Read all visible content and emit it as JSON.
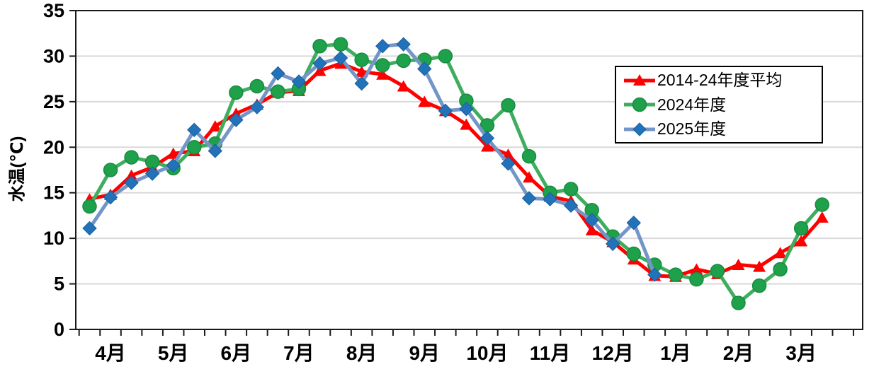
{
  "chart_data": {
    "type": "line",
    "title": "",
    "y_axis": {
      "label": "水温(℃)",
      "min": 0,
      "max": 35,
      "ticks": [
        0,
        5,
        10,
        15,
        20,
        25,
        30,
        35
      ]
    },
    "x_axis": {
      "month_labels": [
        "4月",
        "5月",
        "6月",
        "7月",
        "8月",
        "9月",
        "10月",
        "11月",
        "12月",
        "1月",
        "2月",
        "3月"
      ],
      "points_per_month": 3
    },
    "grid": "horizontal",
    "legend_position": "top-right",
    "series": [
      {
        "name": "2014-24年度平均",
        "marker": "triangle",
        "color": "#FF0000",
        "line_color": "#FF0000",
        "values": [
          14.3,
          14.8,
          16.9,
          17.8,
          19.3,
          19.6,
          22.3,
          23.7,
          24.7,
          26.0,
          26.2,
          28.4,
          29.2,
          28.3,
          28.0,
          26.7,
          25.0,
          24.0,
          22.5,
          20.1,
          19.2,
          16.7,
          14.6,
          14.1,
          10.9,
          9.6,
          7.7,
          5.9,
          5.8,
          6.6,
          6.1,
          7.1,
          6.9,
          8.4,
          9.7,
          12.3
        ]
      },
      {
        "name": "2024年度",
        "marker": "circle",
        "color": "#1FA04A",
        "line_color": "#3EAD5E",
        "values": [
          13.5,
          17.5,
          18.9,
          18.4,
          17.7,
          20.0,
          20.4,
          26.0,
          26.7,
          26.1,
          26.4,
          31.1,
          31.3,
          29.6,
          29.0,
          29.5,
          29.6,
          30.0,
          25.1,
          22.4,
          24.6,
          19.0,
          15.0,
          15.4,
          13.1,
          10.2,
          8.3,
          7.1,
          6.0,
          5.5,
          6.4,
          2.9,
          4.8,
          6.6,
          11.1,
          13.7
        ]
      },
      {
        "name": "2025年度",
        "marker": "diamond",
        "color": "#2272BA",
        "line_color": "#7495C8",
        "values": [
          11.1,
          14.5,
          16.1,
          17.1,
          18.0,
          21.9,
          19.6,
          23.0,
          24.4,
          28.1,
          27.2,
          29.2,
          29.8,
          27.0,
          31.1,
          31.3,
          28.6,
          24.0,
          24.2,
          21.0,
          18.2,
          14.4,
          14.3,
          13.6,
          12.0,
          9.4,
          11.7,
          6.0,
          null,
          null,
          null,
          null,
          null,
          null,
          null,
          null
        ]
      }
    ]
  }
}
